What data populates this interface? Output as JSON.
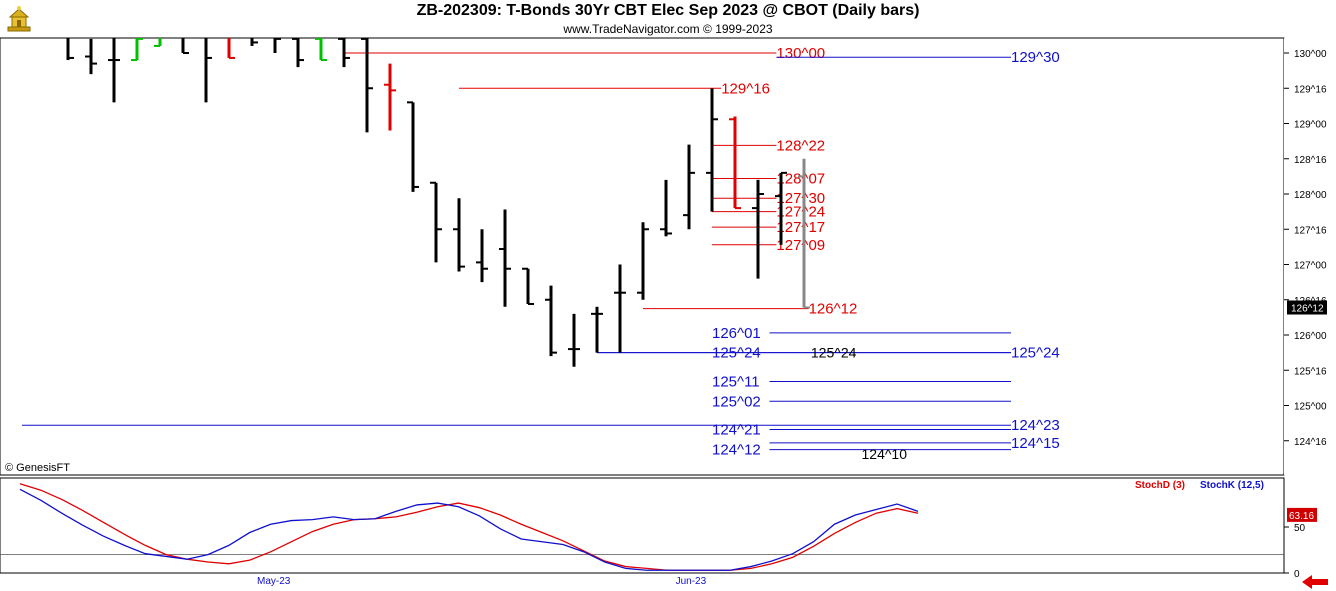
{
  "header": {
    "title": "ZB-202309:  T-Bonds 30Yr CBT Elec Sep 2023 @ CBOT  (Daily bars)",
    "subtitle": "www.TradeNavigator.com © 1999-2023",
    "watermark": "© GenesisFT"
  },
  "colors": {
    "up_bar": "#00c000",
    "down_bar": "#e00000",
    "neutral_bar": "#000000",
    "current_bar": "#888888",
    "blue_level": "#1010cc",
    "red_level": "#e00000",
    "stoch_d": "#e00000",
    "stoch_k": "#1010cc"
  },
  "chart_data": [
    {
      "type": "ohlc",
      "title": "ZB-202309:  T-Bonds 30Yr CBT Elec Sep 2023 @ CBOT  (Daily bars)",
      "y_axis_ticks": [
        "130^00",
        "129^16",
        "129^00",
        "128^16",
        "128^00",
        "127^16",
        "127^00",
        "126^16",
        "126^00",
        "125^16",
        "125^00",
        "124^16"
      ],
      "y_axis_values": [
        130.0,
        129.5,
        129.0,
        128.5,
        128.0,
        127.5,
        127.0,
        126.5,
        126.0,
        125.5,
        125.0,
        124.5
      ],
      "ylim": [
        124.0,
        130.25
      ],
      "last_price_label": "126^12",
      "bars": [
        {
          "o": 130.4,
          "h": 130.6,
          "l": 129.9,
          "c": 129.93,
          "color": "neutral"
        },
        {
          "o": 129.95,
          "h": 130.2,
          "l": 129.7,
          "c": 129.85,
          "color": "neutral"
        },
        {
          "o": 129.9,
          "h": 130.3,
          "l": 129.3,
          "c": 129.9,
          "color": "neutral"
        },
        {
          "o": 129.9,
          "h": 130.4,
          "l": 129.9,
          "c": 130.2,
          "color": "up"
        },
        {
          "o": 130.1,
          "h": 130.6,
          "l": 130.1,
          "c": 130.3,
          "color": "up"
        },
        {
          "o": 130.3,
          "h": 130.5,
          "l": 130.0,
          "c": 130.0,
          "color": "neutral"
        },
        {
          "o": 130.3,
          "h": 130.6,
          "l": 129.3,
          "c": 129.93,
          "color": "neutral"
        },
        {
          "o": 130.3,
          "h": 130.35,
          "l": 129.93,
          "c": 129.93,
          "color": "down"
        },
        {
          "o": 130.3,
          "h": 130.5,
          "l": 130.1,
          "c": 130.15,
          "color": "neutral"
        },
        {
          "o": 130.3,
          "h": 130.4,
          "l": 130.0,
          "c": 130.2,
          "color": "neutral"
        },
        {
          "o": 130.2,
          "h": 130.3,
          "l": 129.8,
          "c": 129.9,
          "color": "neutral"
        },
        {
          "o": 130.2,
          "h": 130.3,
          "l": 129.9,
          "c": 129.9,
          "color": "up"
        },
        {
          "o": 130.2,
          "h": 130.4,
          "l": 129.8,
          "c": 129.93,
          "color": "neutral"
        },
        {
          "o": 130.2,
          "h": 130.3,
          "l": 128.875,
          "c": 129.5,
          "color": "neutral"
        },
        {
          "o": 129.55,
          "h": 129.85,
          "l": 128.9,
          "c": 129.47,
          "color": "down"
        },
        {
          "o": 129.3,
          "h": 129.3,
          "l": 128.03,
          "c": 128.1,
          "color": "neutral"
        },
        {
          "o": 128.16,
          "h": 128.16,
          "l": 127.03,
          "c": 127.5,
          "color": "neutral"
        },
        {
          "o": 127.5,
          "h": 127.94,
          "l": 126.9,
          "c": 126.97,
          "color": "neutral"
        },
        {
          "o": 127.03,
          "h": 127.5,
          "l": 126.75,
          "c": 126.94,
          "color": "neutral"
        },
        {
          "o": 127.22,
          "h": 127.78,
          "l": 126.4,
          "c": 126.94,
          "color": "neutral"
        },
        {
          "o": 126.94,
          "h": 126.94,
          "l": 126.44,
          "c": 126.44,
          "color": "neutral"
        },
        {
          "o": 126.5,
          "h": 126.7,
          "l": 125.7,
          "c": 125.75,
          "color": "neutral"
        },
        {
          "o": 125.8,
          "h": 126.3,
          "l": 125.55,
          "c": 125.8,
          "color": "neutral"
        },
        {
          "o": 126.3,
          "h": 126.4,
          "l": 125.75,
          "c": 126.3,
          "color": "neutral"
        },
        {
          "o": 126.6,
          "h": 127.0,
          "l": 125.75,
          "c": 126.6,
          "color": "neutral"
        },
        {
          "o": 126.6,
          "h": 127.6,
          "l": 126.5,
          "c": 127.5,
          "color": "neutral"
        },
        {
          "o": 127.5,
          "h": 128.2,
          "l": 127.4,
          "c": 127.44,
          "color": "neutral"
        },
        {
          "o": 127.7,
          "h": 128.7,
          "l": 127.5,
          "c": 128.3,
          "color": "neutral"
        },
        {
          "o": 128.3,
          "h": 129.5,
          "l": 127.75,
          "c": 129.06,
          "color": "neutral"
        },
        {
          "o": 129.06,
          "h": 129.1,
          "l": 127.8,
          "c": 127.8,
          "color": "down"
        },
        {
          "o": 127.8,
          "h": 128.2,
          "l": 126.8,
          "c": 128.0,
          "color": "neutral"
        },
        {
          "o": 127.97,
          "h": 128.3,
          "l": 127.28,
          "c": 128.3,
          "color": "neutral"
        },
        {
          "o": 128.25,
          "h": 128.5,
          "l": 126.39,
          "c": 126.39,
          "color": "current"
        }
      ],
      "levels": [
        {
          "label": "130^00",
          "value": 130.0,
          "color": "red",
          "from": 12,
          "to": 30.8,
          "label_at": 30.8
        },
        {
          "label": "129^30",
          "value": 129.94,
          "color": "blue",
          "from": 30.8,
          "to": 41.0,
          "label_at": 41.0
        },
        {
          "label": "129^16",
          "value": 129.5,
          "color": "red",
          "from": 17,
          "to": 28.4,
          "label_at": 28.4
        },
        {
          "label": "128^22",
          "value": 128.69,
          "color": "red",
          "from": 28.0,
          "to": 30.8,
          "label_at": 30.8
        },
        {
          "label": "128^07",
          "value": 128.22,
          "color": "red",
          "from": 28.0,
          "to": 30.8,
          "label_at": 30.8
        },
        {
          "label": "127^30",
          "value": 127.94,
          "color": "red",
          "from": 28.0,
          "to": 30.8,
          "label_at": 30.8
        },
        {
          "label": "127^24",
          "value": 127.75,
          "color": "red",
          "from": 28.0,
          "to": 30.8,
          "label_at": 30.8
        },
        {
          "label": "127^17",
          "value": 127.53,
          "color": "red",
          "from": 28.0,
          "to": 30.8,
          "label_at": 30.8
        },
        {
          "label": "127^09",
          "value": 127.28,
          "color": "red",
          "from": 28.0,
          "to": 30.8,
          "label_at": 30.8
        },
        {
          "label": "126^12",
          "value": 126.375,
          "color": "red",
          "from": 25.0,
          "to": 32.2,
          "label_at": 32.2
        },
        {
          "label": "126^01",
          "value": 126.03,
          "color": "blue",
          "from": 30.5,
          "to": 41.0,
          "label_at": 28.0
        },
        {
          "label": "125^24",
          "value": 125.75,
          "color": "blue",
          "from": 23.0,
          "to": 41.0,
          "label_at": 28.0
        },
        {
          "label": "125^24",
          "value": 125.75,
          "color": "blue",
          "from": 23.0,
          "to": 41.0,
          "label_at": 41.0
        },
        {
          "label": "125^24",
          "value": 125.75,
          "color": "black",
          "from": 32.0,
          "to": 32.0,
          "label_at": 32.3
        },
        {
          "label": "125^11",
          "value": 125.34,
          "color": "blue",
          "from": 30.5,
          "to": 41.0,
          "label_at": 28.0
        },
        {
          "label": "125^02",
          "value": 125.06,
          "color": "blue",
          "from": 30.5,
          "to": 41.0,
          "label_at": 28.0
        },
        {
          "label": "124^23",
          "value": 124.72,
          "color": "blue",
          "from": -2.0,
          "to": 41.0,
          "label_at": 41.0
        },
        {
          "label": "124^21",
          "value": 124.66,
          "color": "blue",
          "from": 30.5,
          "to": 41.0,
          "label_at": 28.0
        },
        {
          "label": "124^15",
          "value": 124.47,
          "color": "blue",
          "from": 30.5,
          "to": 41.0,
          "label_at": 41.0
        },
        {
          "label": "124^12",
          "value": 124.375,
          "color": "blue",
          "from": 30.5,
          "to": 41.0,
          "label_at": 28.0
        },
        {
          "label": "124^10",
          "value": 124.31,
          "color": "black",
          "from": 34.5,
          "to": 34.5,
          "label_at": 34.5
        }
      ],
      "x_labels": [
        {
          "label": "May-23",
          "at": 9.0
        },
        {
          "label": "Jun-23",
          "at": 27.2
        }
      ]
    },
    {
      "type": "line",
      "title": "",
      "ylim": [
        0,
        100
      ],
      "y_axis_ticks": [
        "50",
        "0"
      ],
      "y_axis_values": [
        50,
        0
      ],
      "last_value_label": "63.16",
      "series": [
        {
          "name": "StochD (3)",
          "color": "red",
          "values": [
            97,
            90,
            80,
            68,
            55,
            42,
            30,
            20,
            15,
            12,
            10,
            14,
            23,
            34,
            45,
            53,
            58,
            59,
            61,
            66,
            72,
            76,
            71,
            63,
            53,
            44,
            35,
            24,
            13,
            7,
            5,
            3,
            3,
            3,
            3,
            5,
            10,
            17,
            29,
            43,
            55,
            65,
            70,
            65
          ]
        },
        {
          "name": "StochK (12,5)",
          "color": "blue",
          "values": [
            91,
            79,
            65,
            52,
            40,
            30,
            21,
            18,
            15,
            20,
            30,
            44,
            53,
            57,
            58,
            61,
            58,
            59,
            67,
            74,
            76,
            72,
            62,
            48,
            37,
            34,
            31,
            23,
            12,
            5,
            3,
            3,
            3,
            3,
            3,
            7,
            13,
            21,
            34,
            53,
            63,
            69,
            75,
            67
          ]
        }
      ]
    }
  ]
}
